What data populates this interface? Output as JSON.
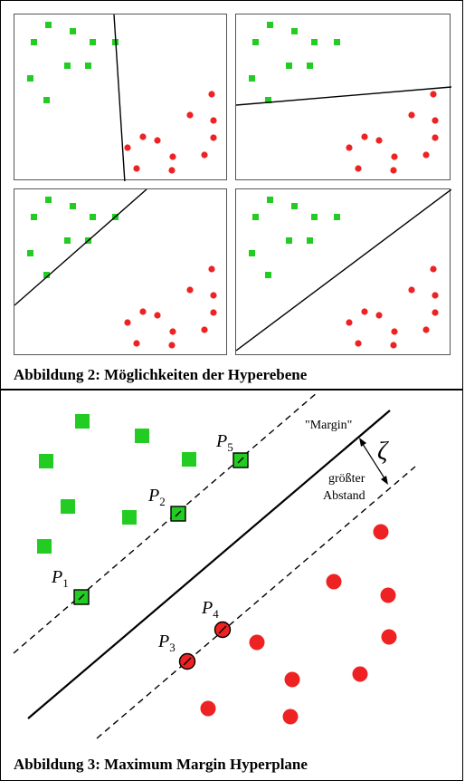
{
  "figure2": {
    "caption": "Abbildung 2: Möglichkeiten der Hyperebene",
    "class_a_color": "#22cc22",
    "class_b_color": "#ee2222",
    "panels": [
      {
        "name": "panel-top-left"
      },
      {
        "name": "panel-top-right"
      },
      {
        "name": "panel-bottom-left"
      },
      {
        "name": "panel-bottom-right"
      }
    ]
  },
  "figure3": {
    "caption": "Abbildung 3: Maximum Margin Hyperplane",
    "margin_label": "\"Margin\"",
    "zeta_label": "ζ",
    "distance_label_line1": "größter",
    "distance_label_line2": "Abstand",
    "points": {
      "p1": {
        "letter": "P",
        "sub": "1"
      },
      "p2": {
        "letter": "P",
        "sub": "2"
      },
      "p3": {
        "letter": "P",
        "sub": "3"
      },
      "p4": {
        "letter": "P",
        "sub": "4"
      },
      "p5": {
        "letter": "P",
        "sub": "5"
      }
    }
  }
}
